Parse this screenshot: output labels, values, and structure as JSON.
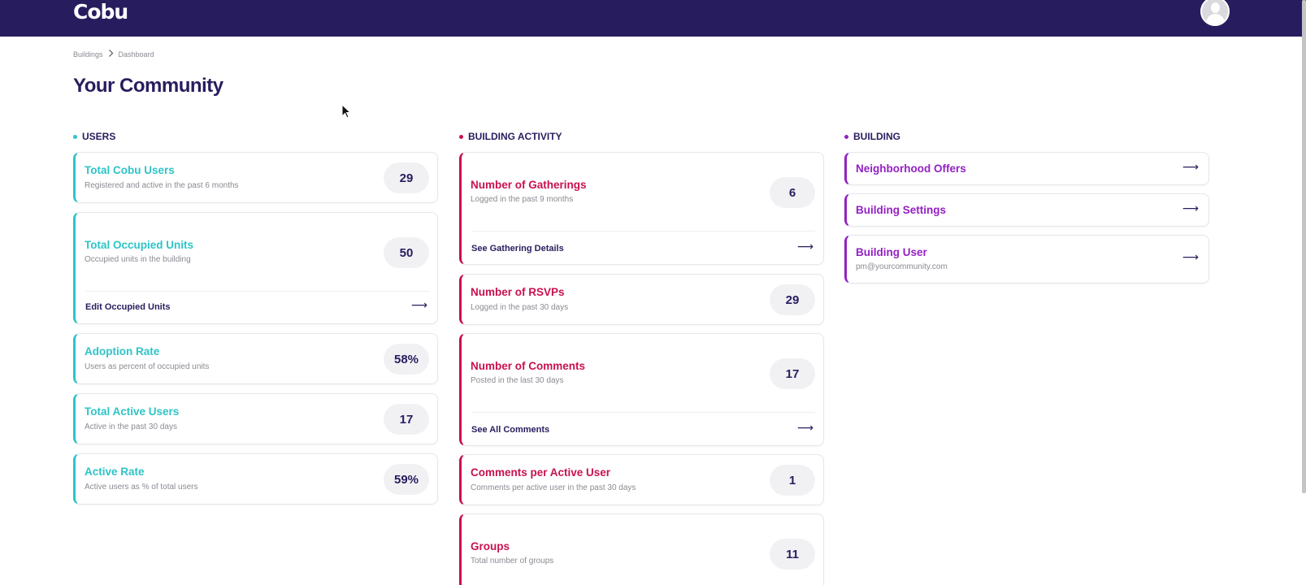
{
  "brand": {
    "name": "Cobu"
  },
  "breadcrumb": {
    "items": [
      "Buildings",
      "Dashboard"
    ]
  },
  "page": {
    "title": "Your Community"
  },
  "sections": {
    "users": "USERS",
    "activity": "BUILDING ACTIVITY",
    "building": "BUILDING"
  },
  "colors": {
    "navbar": "#271d5e",
    "users": "#2ec4c7",
    "activity": "#c8114f",
    "building": "#9421c4"
  },
  "users_cards": [
    {
      "title": "Total Cobu Users",
      "subtitle": "Registered and active in the past 6 months",
      "value": "29"
    },
    {
      "title": "Total Occupied Units",
      "subtitle": "Occupied units in the building",
      "value": "50",
      "link": "Edit Occupied Units"
    },
    {
      "title": "Adoption Rate",
      "subtitle": "Users as percent of occupied units",
      "value": "58%"
    },
    {
      "title": "Total Active Users",
      "subtitle": "Active in the past 30 days",
      "value": "17"
    },
    {
      "title": "Active Rate",
      "subtitle": "Active users as % of total users",
      "value": "59%"
    }
  ],
  "activity_cards": [
    {
      "title": "Number of Gatherings",
      "subtitle": "Logged in the past 9 months",
      "value": "6",
      "link": "See Gathering Details"
    },
    {
      "title": "Number of RSVPs",
      "subtitle": "Logged in the past 30 days",
      "value": "29"
    },
    {
      "title": "Number of Comments",
      "subtitle": "Posted in the last 30 days",
      "value": "17",
      "link": "See All Comments"
    },
    {
      "title": "Comments per Active User",
      "subtitle": "Comments per active user in the past 30 days",
      "value": "1"
    },
    {
      "title": "Groups",
      "subtitle": "Total number of groups",
      "value": "11"
    }
  ],
  "building_cards": [
    {
      "title": "Neighborhood Offers"
    },
    {
      "title": "Building Settings"
    },
    {
      "title": "Building User",
      "subtitle": "pm@yourcommunity.com"
    }
  ],
  "icons": {
    "arrow": "arrow-right-icon",
    "separator": "chevron-right-icon",
    "avatar": "user-avatar-icon",
    "cursor": "mouse-cursor-icon"
  }
}
